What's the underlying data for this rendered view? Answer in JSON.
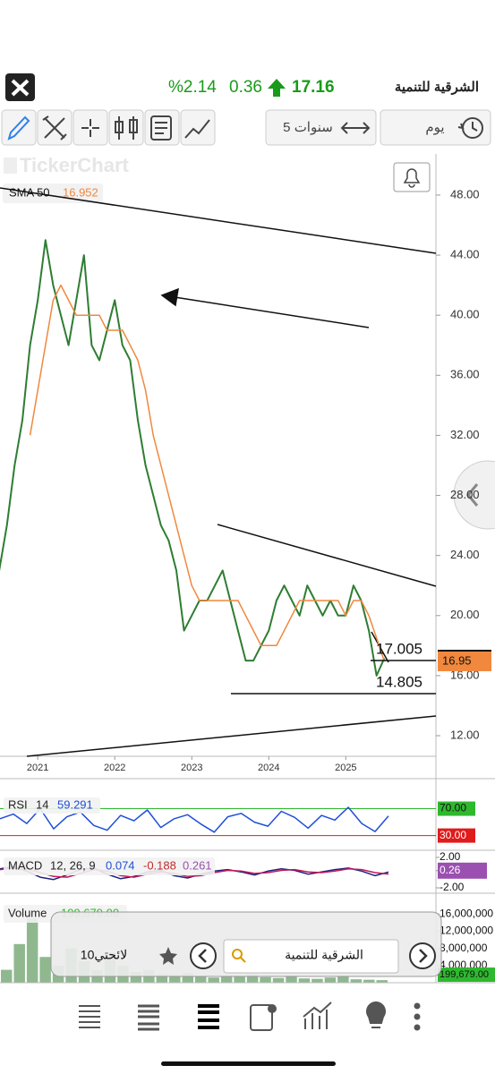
{
  "header": {
    "symbol_name": "الشرقية للتنمية",
    "price": "17.16",
    "change": "0.36",
    "change_percent": "%2.14"
  },
  "toolbar": {
    "period": "5 سنوات",
    "interval": "يوم"
  },
  "chart_data": {
    "type": "line",
    "watermark": "TickerChart",
    "x": [
      2020.5,
      2020.6,
      2020.7,
      2020.8,
      2020.9,
      2021.0,
      2021.1,
      2021.2,
      2021.3,
      2021.4,
      2021.5,
      2021.6,
      2021.7,
      2021.8,
      2021.9,
      2022.0,
      2022.1,
      2022.2,
      2022.3,
      2022.4,
      2022.5,
      2022.6,
      2022.7,
      2022.8,
      2022.9,
      2023.0,
      2023.1,
      2023.2,
      2023.3,
      2023.4,
      2023.5,
      2023.6,
      2023.7,
      2023.8,
      2023.9,
      2024.0,
      2024.1,
      2024.2,
      2024.3,
      2024.4,
      2024.5,
      2024.6,
      2024.7,
      2024.8,
      2024.9,
      2025.0,
      2025.1,
      2025.2,
      2025.3,
      2025.4,
      2025.5
    ],
    "xlim": [
      2020.51,
      2026.17
    ],
    "xticks": [
      2021,
      2022,
      2023,
      2024,
      2025
    ],
    "ylim": [
      10.63,
      50.56
    ],
    "yticks": [
      {
        "value": 12,
        "label": "12.00"
      },
      {
        "value": 16,
        "label": "16.00"
      },
      {
        "value": 20,
        "label": "20.00"
      },
      {
        "value": 24,
        "label": "24.00"
      },
      {
        "value": 28,
        "label": "28.00"
      },
      {
        "value": 32,
        "label": "32.00"
      },
      {
        "value": 36,
        "label": "36.00"
      },
      {
        "value": 40,
        "label": "40.00"
      },
      {
        "value": 44,
        "label": "44.00"
      },
      {
        "value": 48,
        "label": "48.00"
      }
    ],
    "series": [
      {
        "color": "#2e7d32",
        "values": [
          23,
          26,
          30,
          33,
          38,
          41,
          45,
          42,
          40,
          38,
          41,
          44,
          38,
          37,
          39,
          41,
          38,
          37,
          33,
          30,
          28,
          26,
          25,
          23,
          19,
          20,
          21,
          21,
          22,
          23,
          21,
          19,
          17,
          17,
          18,
          19,
          21,
          22,
          21,
          20,
          22,
          21,
          20,
          21,
          20,
          20,
          22,
          21,
          19,
          16,
          17.16
        ]
      },
      {
        "name": "SMA 50",
        "color": "#f0883e",
        "last_value": 16.952,
        "values": [
          null,
          null,
          null,
          null,
          32,
          35,
          38,
          41,
          42,
          41,
          40,
          40,
          40,
          40,
          39,
          39,
          39,
          38,
          37,
          35,
          32,
          30,
          28,
          26,
          24,
          22,
          21,
          21,
          21,
          21,
          21,
          21,
          20,
          19,
          18,
          18,
          18,
          19,
          20,
          21,
          21,
          21,
          21,
          21,
          21,
          20,
          21,
          21,
          20,
          18.5,
          16.95
        ]
      }
    ],
    "levels": [
      17.005,
      14.805
    ],
    "last_price": 16.95
  },
  "indicators": {
    "rsi": {
      "name": "RSI",
      "period": 14,
      "last_value": 59.291,
      "color": "#1f4fd8",
      "ylim": [
        14.8,
        90.7
      ],
      "yticks": [
        {
          "value": 70,
          "label": "70.00"
        },
        {
          "value": 30,
          "label": "30.00"
        }
      ],
      "values": [
        55,
        62,
        48,
        70,
        40,
        58,
        65,
        45,
        38,
        60,
        52,
        68,
        42,
        55,
        61,
        47,
        35,
        58,
        63,
        50,
        44,
        66,
        57,
        41,
        60,
        53,
        72,
        48,
        36,
        59
      ]
    },
    "macd": {
      "name": "MACD",
      "params": "12, 26, 9",
      "macd_value": 0.074,
      "signal_value": -0.188,
      "hist_value": 0.261,
      "ylim": [
        -2.35,
        2.94
      ],
      "yticks": [
        {
          "value": 2,
          "label": "2.00"
        },
        {
          "value": 0.26,
          "label": "0.26"
        },
        {
          "value": -2,
          "label": "-2.00"
        }
      ],
      "series": [
        {
          "color": "#1a237e",
          "values": [
            0.5,
            0.8,
            0.2,
            -0.6,
            -0.9,
            -0.3,
            0.4,
            0.6,
            -0.2,
            -0.8,
            -0.5,
            0.1,
            0.3,
            -0.4,
            -0.7,
            -0.2,
            0.2,
            0.4,
            0.1,
            -0.3,
            0.2,
            0.5,
            0.3,
            -0.2,
            0.1,
            0.4,
            0.6,
            0.2,
            -0.4,
            0.07
          ]
        },
        {
          "color": "#c2185b",
          "values": [
            0.4,
            0.6,
            0.5,
            0,
            -0.5,
            -0.6,
            -0.1,
            0.4,
            0.2,
            -0.4,
            -0.6,
            -0.2,
            0.1,
            -0.1,
            -0.5,
            -0.4,
            0,
            0.3,
            0.2,
            -0.1,
            0,
            0.3,
            0.4,
            0.1,
            0,
            0.2,
            0.5,
            0.4,
            0,
            -0.19
          ]
        }
      ]
    },
    "volume": {
      "name": "Volume",
      "last_value": {
        "value": 199679,
        "label": "199,679.00"
      },
      "color": "#8fb88f",
      "ylim": [
        0,
        19800000
      ],
      "yticks": [
        {
          "value": 16000000,
          "label": "16,000,000"
        },
        {
          "value": 12000000,
          "label": "12,000,000"
        },
        {
          "value": 8000000,
          "label": "8,000,000"
        },
        {
          "value": 4000000,
          "label": "4,000,000"
        }
      ],
      "values": [
        3000000,
        9000000,
        15000000,
        6000000,
        4000000,
        8000000,
        5000000,
        3000000,
        7000000,
        4000000,
        2500000,
        3000000,
        2000000,
        1800000,
        2200000,
        1500000,
        1200000,
        1600000,
        1400000,
        2000000,
        1300000,
        1100000,
        1800000,
        1000000,
        900000,
        1200000,
        1500000,
        800000,
        700000,
        600000
      ]
    }
  },
  "search_bar": {
    "watchlist": "لائحتي10",
    "query": "الشرقية للتنمية"
  }
}
